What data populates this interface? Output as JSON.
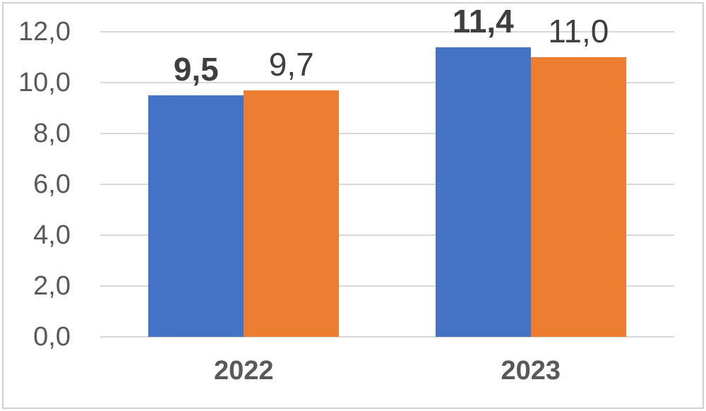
{
  "chart_data": {
    "type": "bar",
    "title": "",
    "xlabel": "",
    "ylabel": "",
    "categories": [
      "2022",
      "2023"
    ],
    "series": [
      {
        "name": "blue-series",
        "color": "#4472C4",
        "values": [
          9.5,
          11.4
        ],
        "display_labels": [
          "9,5",
          "11,4"
        ],
        "label_bold": true
      },
      {
        "name": "orange-series",
        "color": "#ED7D31",
        "values": [
          9.7,
          11.0
        ],
        "display_labels": [
          "9,7",
          "11,0"
        ],
        "label_bold": false
      }
    ],
    "y_axis": {
      "min": 0,
      "max": 12,
      "step": 2,
      "tick_labels": [
        "0,0",
        "2,0",
        "4,0",
        "6,0",
        "8,0",
        "10,0",
        "12,0"
      ]
    },
    "grid": true,
    "legend": false,
    "colors": {
      "gridline": "#d9d9d9",
      "axis_text": "#595959",
      "data_label_text": "#3f3f3f",
      "category_text": "#595959",
      "border": "#d2d2d2",
      "background": "#ffffff"
    }
  }
}
